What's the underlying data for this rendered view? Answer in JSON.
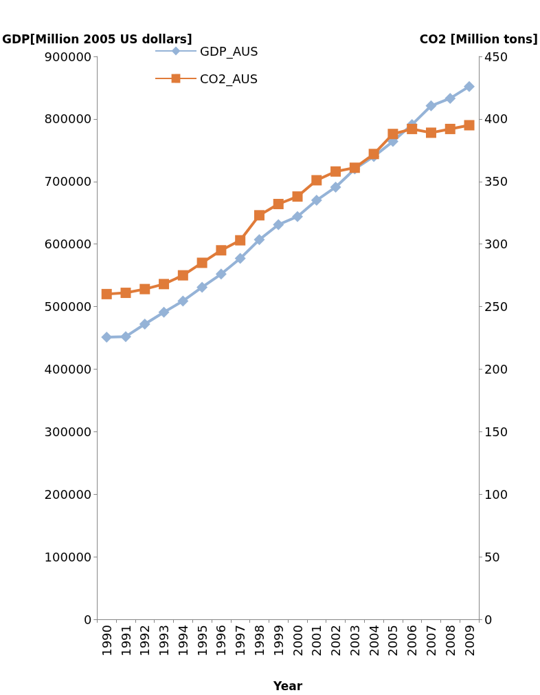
{
  "chart_data": {
    "type": "line",
    "xlabel": "Year",
    "ylabel": "GDP[Million 2005 US dollars]",
    "y2label": "CO2 [Million tons]",
    "categories": [
      "1990",
      "1991",
      "1992",
      "1993",
      "1994",
      "1995",
      "1996",
      "1997",
      "1998",
      "1999",
      "2000",
      "2001",
      "2002",
      "2003",
      "2004",
      "2005",
      "2006",
      "2007",
      "2008",
      "2009"
    ],
    "series": [
      {
        "name": "GDP_AUS",
        "color": "#95b3d7",
        "marker": "diamond",
        "values": [
          451000,
          452000,
          472000,
          491000,
          509000,
          531000,
          552000,
          577000,
          607000,
          631000,
          644000,
          670000,
          691000,
          720000,
          740000,
          764000,
          791000,
          821000,
          833000,
          852000
        ]
      },
      {
        "name": "CO2_AUS",
        "color": "#e07b39",
        "marker": "square",
        "axis": "y2",
        "values": [
          260,
          261,
          264,
          268,
          275,
          285,
          295,
          303,
          323,
          332,
          338,
          351,
          358,
          361,
          372,
          388,
          392,
          389,
          392,
          395
        ]
      }
    ],
    "ylim": [
      0,
      900000
    ],
    "yticks": [
      0,
      100000,
      200000,
      300000,
      400000,
      500000,
      600000,
      700000,
      800000,
      900000
    ],
    "y2lim": [
      0,
      450
    ],
    "y2ticks": [
      0,
      50,
      100,
      150,
      200,
      250,
      300,
      350,
      400,
      450
    ],
    "grid": false,
    "legend": "top"
  }
}
